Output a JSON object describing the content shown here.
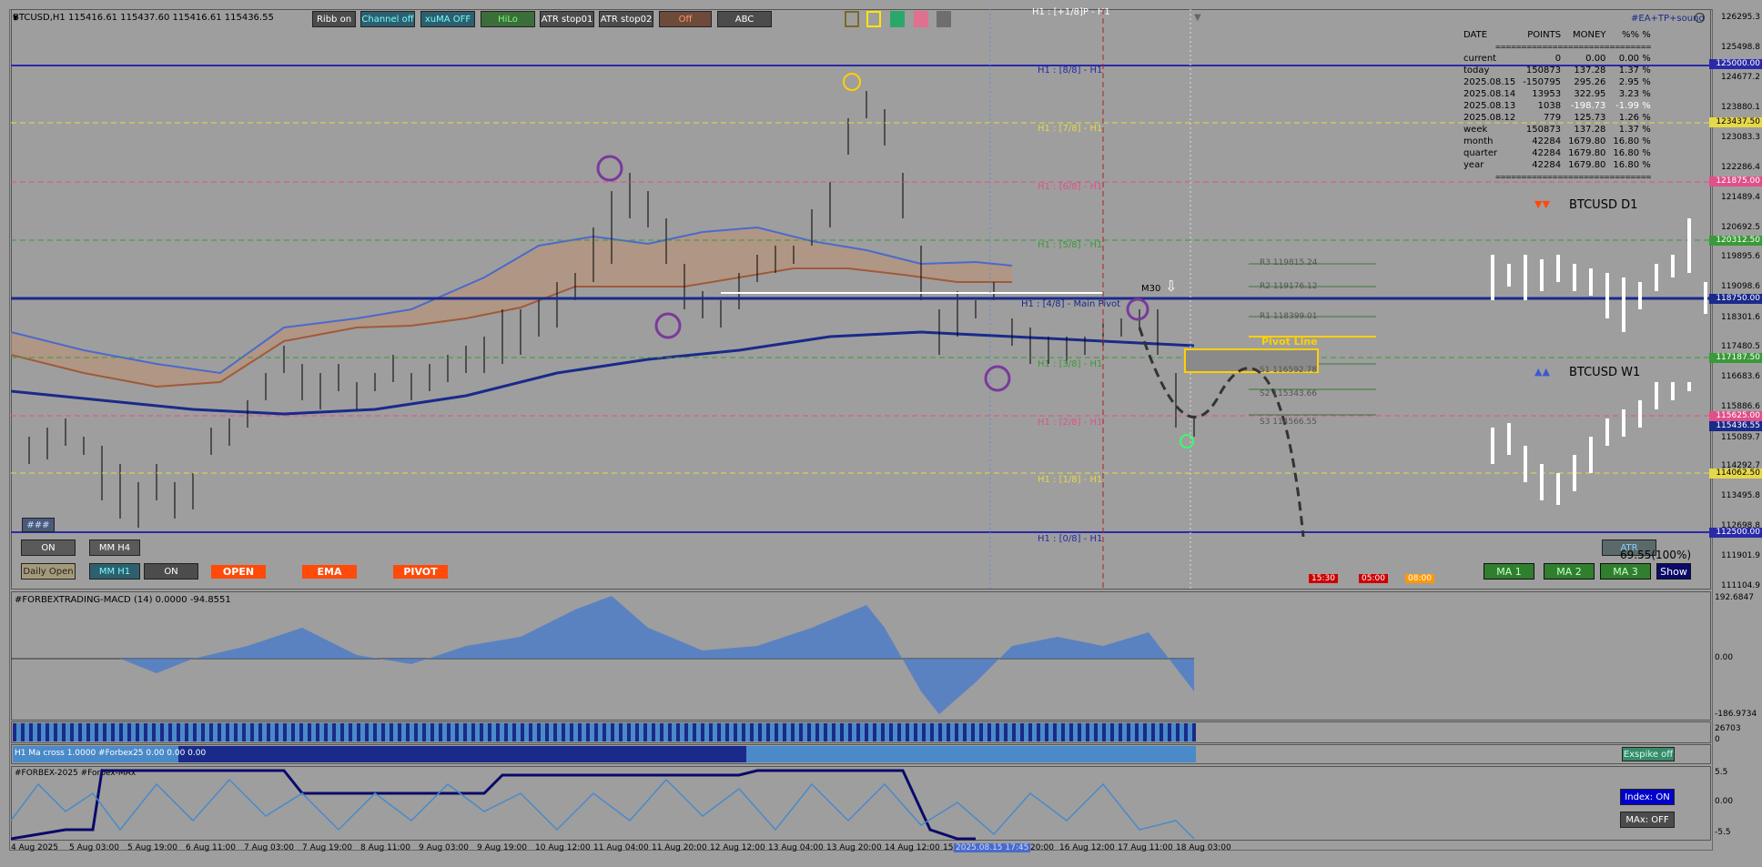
{
  "header": {
    "symbol_info": "BTCUSD,H1  115416.61 115437.60 115416.61 115436.55",
    "top_marker": "H1 : [+1/8]P - H1",
    "ea_label": "#EA+TP+sound"
  },
  "toolbar": {
    "buttons": [
      "Ribb on",
      "Channel off",
      "xuMA OFF",
      "HiLo",
      "ATR stop01",
      "ATR stop02",
      "Off",
      "ABC"
    ]
  },
  "colors": {
    "accent_red": "#ff4a0a",
    "line_blue": "#1a2a8a",
    "ma_red": "#a05a3a"
  },
  "murrey_levels": [
    {
      "label": "H1 : [8/8] - H1",
      "price": "125000.00"
    },
    {
      "label": "H1 : [7/8] - H1",
      "price": "123437.50"
    },
    {
      "label": "H1 : [6/8] - H1",
      "price": "121875.00"
    },
    {
      "label": "H1 : [5/8] - H1",
      "price": "120312.50"
    },
    {
      "label": "H1 : [4/8] - Main Pivot",
      "price": "118750.00"
    },
    {
      "label": "H1 : [3/8] - H1",
      "price": "117187.50"
    },
    {
      "label": "H1 : [2/8] - H1",
      "price": "115625.00"
    },
    {
      "label": "H1 : [1/8] - H1",
      "price": "114062.50"
    },
    {
      "label": "H1 : [0/8] - H1",
      "price": "112500.00"
    }
  ],
  "pivots": {
    "r3": "R3  119815.24",
    "r2": "R2  119176.12",
    "r1": "R1  118399.01",
    "pivot_line": "Pivot Line",
    "s1": "S1  116592.78",
    "s2": "S2  115343.66",
    "s3": "S3  114566.55",
    "m30": "M30"
  },
  "price_axis": [
    "126295.3",
    "125498.8",
    "124677.2",
    "123880.1",
    "123083.3",
    "122286.4",
    "121489.4",
    "120692.5",
    "119895.6",
    "119098.6",
    "118301.6",
    "117480.5",
    "116683.6",
    "115886.6",
    "115089.7",
    "114292.7",
    "113495.8",
    "112698.8",
    "111901.9",
    "111104.9"
  ],
  "current_price_tag": "115436.55",
  "stats": {
    "headers": [
      "DATE",
      "POINTS",
      "MONEY",
      "%% %"
    ],
    "separator": "==============================",
    "rows": [
      {
        "date": "current",
        "points": "0",
        "money": "0.00",
        "pct": "0.00 %"
      },
      {
        "date": "today",
        "points": "150873",
        "money": "137.28",
        "pct": "1.37 %"
      },
      {
        "date": "2025.08.15",
        "points": "-150795",
        "money": "295.26",
        "pct": "2.95 %"
      },
      {
        "date": "2025.08.14",
        "points": "13953",
        "money": "322.95",
        "pct": "3.23 %"
      },
      {
        "date": "2025.08.13",
        "points": "1038",
        "money": "-198.73",
        "pct": "-1.99 %"
      },
      {
        "date": "2025.08.12",
        "points": "779",
        "money": "125.73",
        "pct": "1.26 %"
      },
      {
        "date": "week",
        "points": "150873",
        "money": "137.28",
        "pct": "1.37 %"
      },
      {
        "date": "month",
        "points": "42284",
        "money": "1679.80",
        "pct": "16.80 %"
      },
      {
        "date": "quarter",
        "points": "42284",
        "money": "1679.80",
        "pct": "16.80 %"
      },
      {
        "date": "year",
        "points": "42284",
        "money": "1679.80",
        "pct": "16.80 %"
      }
    ]
  },
  "mini_charts": {
    "d1_title": "BTCUSD D1",
    "w1_title": "BTCUSD W1",
    "d1_arrows": "▼▼",
    "w1_arrows": "▲▲"
  },
  "panel_buttons": {
    "hash": "###",
    "on1": "ON",
    "mm_h4": "MM H4",
    "daily_open": "Daily Open",
    "mm_h1": "MM H1",
    "on2": "ON",
    "open": "OPEN",
    "ema": "EMA",
    "pivot": "PIVOT"
  },
  "session_tags": [
    "15:30",
    "05:00",
    "08:00"
  ],
  "atr": {
    "label": "ATR",
    "value": "69.55(100%)"
  },
  "ma_buttons": [
    "MA 1",
    "MA 2",
    "MA 3",
    "Show"
  ],
  "macd": {
    "title": "#FORBEXTRADING-MACD (14) 0.0000 -94.8551",
    "axis": [
      "192.6847",
      "0.00",
      "-186.9734"
    ]
  },
  "strip": {
    "axis": "26703",
    "axis2": "0",
    "ma_cross": "H1 Ma cross 1.0000  #Forbex25 0.00 0.00 0.00",
    "exspike": "Exspike off"
  },
  "forbex": {
    "title": "#FORBEX-2025  #Forbex-MAx",
    "axis": [
      "5.5",
      "0.00",
      "-5.5"
    ],
    "index_btn": "Index: ON",
    "max_btn": "MAx: OFF"
  },
  "time_axis": [
    "4 Aug 2025",
    "5 Aug 03:00",
    "5 Aug 19:00",
    "6 Aug 11:00",
    "7 Aug 03:00",
    "7 Aug 19:00",
    "8 Aug 11:00",
    "9 Aug 03:00",
    "9 Aug 19:00",
    "10 Aug 12:00",
    "11 Aug 04:00",
    "11 Aug 20:00",
    "12 Aug 12:00",
    "13 Aug 04:00",
    "13 Aug 20:00",
    "14 Aug 12:00",
    "15",
    "2025.08.15 17:45",
    "20:00",
    "16 Aug 12:00",
    "17 Aug 11:00",
    "18 Aug 03:00"
  ]
}
